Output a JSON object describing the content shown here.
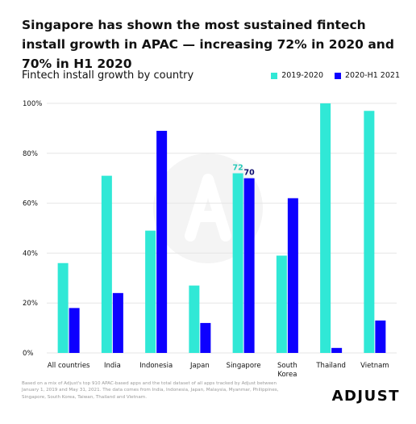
{
  "headline": "Singapore has shown the most sustained fintech install growth in APAC — increasing 72% in 2020 and 70% in H1 2020",
  "colors": {
    "series_1": "#30e8d6",
    "series_2": "#0d00ff",
    "grid": "#e6e6e6",
    "text": "#111111",
    "footnote": "#999999"
  },
  "chart_data": {
    "type": "bar",
    "title": "Fintech install growth by country",
    "xlabel": "",
    "ylabel": "",
    "ylim": [
      0,
      100
    ],
    "yticks": [
      "0%",
      "20%",
      "40%",
      "60%",
      "80%",
      "100%"
    ],
    "grid": true,
    "legend_position": "top-right",
    "categories": [
      "All countries",
      "India",
      "Indonesia",
      "Japan",
      "Singapore",
      "South Korea",
      "Thailand",
      "Vietnam"
    ],
    "series": [
      {
        "name": "2019-2020",
        "values": [
          36,
          71,
          49,
          27,
          72,
          39,
          100,
          97
        ]
      },
      {
        "name": "2020-H1 2021",
        "values": [
          18,
          24,
          89,
          12,
          70,
          62,
          2,
          13
        ]
      }
    ],
    "annotations": [
      {
        "category": "Singapore",
        "series": 0,
        "text": "72"
      },
      {
        "category": "Singapore",
        "series": 1,
        "text": "70"
      }
    ]
  },
  "footnote": "Based on a mix of Adjust's top 910 APAC-based apps and the total dataset of all apps tracked by Adjust between January 1, 2019 and May 31, 2021. The data comes from India, Indonesia, Japan, Malaysia, Myanmar, Philippines, Singapore, South Korea, Taiwan, Thailand and Vietnam.",
  "brand": "ADJUST",
  "watermark_icon": "adjust-logo-icon"
}
